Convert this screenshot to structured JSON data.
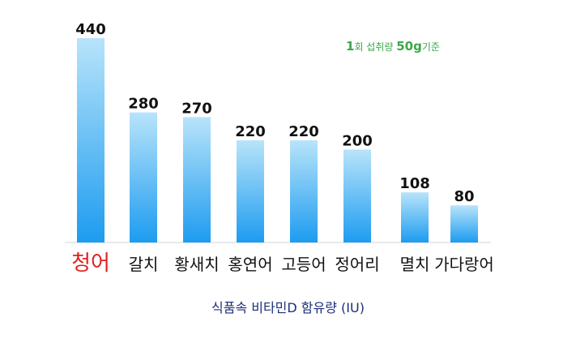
{
  "chart_data": {
    "type": "bar",
    "categories": [
      "청어",
      "갈치",
      "황새치",
      "홍연어",
      "고등어",
      "정어리",
      "멸치",
      "가다랑어"
    ],
    "values": [
      440,
      280,
      270,
      220,
      220,
      200,
      108,
      80
    ],
    "value_labels": [
      "440",
      "280",
      "270",
      "220",
      "220",
      "200",
      "108",
      "80"
    ],
    "highlight_category": "청어",
    "xlabel": "식품속 비타민D 함유량 (IU)",
    "ylim": [
      0,
      440
    ],
    "grid": false,
    "legend": "none"
  },
  "note": {
    "part1": "1",
    "part2": "회 섭취량 ",
    "part3": "50g",
    "part4": "기준"
  },
  "colors": {
    "bar_top": "#b8e4fa",
    "bar_bottom": "#1d9cf0",
    "highlight_label": "#e02020",
    "note": "#3aa84a",
    "xlabel": "#1c2f7a",
    "baseline": "#cfd6dc"
  }
}
